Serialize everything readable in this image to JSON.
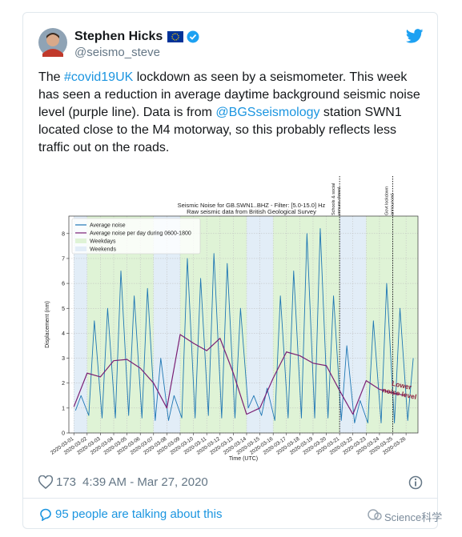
{
  "tweet": {
    "name": "Stephen Hicks",
    "handle": "@seismo_steve",
    "text_parts": [
      "The ",
      "#covid19UK",
      " lockdown as seen by a seismometer. This week has seen a reduction in average daytime background seismic noise level (purple line). Data is from ",
      "@BGSseismology",
      " station SWN1 located close to the M4 motorway, so this probably reflects less traffic out on the roads."
    ],
    "likes": "173",
    "timestamp": "4:39 AM - Mar 27, 2020",
    "conversation": "95 people are talking about this",
    "watermark": "Science科学"
  },
  "chart_data": {
    "type": "line",
    "title": "Seismic Noise for GB.SWN1..BHZ - Filter: [5.0-15.0] Hz",
    "subtitle": "Raw seismic data from British Geological Survey",
    "y_label": "Displacement (nm)",
    "x_label": "Time (UTC)",
    "xlim": [
      "2020-02-29T15:00",
      "2020-03-26T21:30"
    ],
    "ylim": [
      0,
      8.7
    ],
    "yticks": [
      0,
      1,
      2,
      3,
      4,
      5,
      6,
      7,
      8
    ],
    "xticks": [
      "2020-03-01",
      "2020-03-02",
      "2020-03-03",
      "2020-03-04",
      "2020-03-05",
      "2020-03-06",
      "2020-03-07",
      "2020-03-08",
      "2020-03-09",
      "2020-03-10",
      "2020-03-11",
      "2020-03-12",
      "2020-03-13",
      "2020-03-14",
      "2020-03-15",
      "2020-03-16",
      "2020-03-17",
      "2020-03-18",
      "2020-03-19",
      "2020-03-20",
      "2020-03-21",
      "2020-03-22",
      "2020-03-23",
      "2020-03-24",
      "2020-03-25",
      "2020-03-26"
    ],
    "grid": true,
    "legend": "upper left",
    "shading": [
      {
        "name": "Weekdays",
        "color": "#dff3d6"
      },
      {
        "name": "Weekends",
        "color": "#e2edf7"
      }
    ],
    "series": [
      {
        "name": "Average noise",
        "color": "#1f77b4",
        "x": [
          "2020-03-01T03:00",
          "2020-03-01T13:00",
          "2020-03-02T03:00",
          "2020-03-02T13:00",
          "2020-03-03T03:00",
          "2020-03-03T13:00",
          "2020-03-04T03:00",
          "2020-03-04T13:00",
          "2020-03-05T03:00",
          "2020-03-05T13:00",
          "2020-03-06T03:00",
          "2020-03-06T13:00",
          "2020-03-07T03:00",
          "2020-03-07T13:00",
          "2020-03-08T03:00",
          "2020-03-08T13:00",
          "2020-03-09T03:00",
          "2020-03-09T13:00",
          "2020-03-10T03:00",
          "2020-03-10T13:00",
          "2020-03-11T03:00",
          "2020-03-11T13:00",
          "2020-03-12T03:00",
          "2020-03-12T13:00",
          "2020-03-13T03:00",
          "2020-03-13T13:00",
          "2020-03-14T03:00",
          "2020-03-14T13:00",
          "2020-03-15T03:00",
          "2020-03-15T13:00",
          "2020-03-16T03:00",
          "2020-03-16T13:00",
          "2020-03-17T03:00",
          "2020-03-17T13:00",
          "2020-03-18T03:00",
          "2020-03-18T13:00",
          "2020-03-19T03:00",
          "2020-03-19T13:00",
          "2020-03-20T03:00",
          "2020-03-20T13:00",
          "2020-03-21T03:00",
          "2020-03-21T13:00",
          "2020-03-22T03:00",
          "2020-03-22T13:00",
          "2020-03-23T03:00",
          "2020-03-23T13:00",
          "2020-03-24T03:00",
          "2020-03-24T13:00",
          "2020-03-25T03:00",
          "2020-03-25T13:00",
          "2020-03-26T03:00",
          "2020-03-26T13:00"
        ],
        "values": [
          0.9,
          1.5,
          0.7,
          4.5,
          0.6,
          5.0,
          0.6,
          6.5,
          0.7,
          5.5,
          0.6,
          5.8,
          0.5,
          3.0,
          0.5,
          1.5,
          0.6,
          7.0,
          0.6,
          6.2,
          0.7,
          7.2,
          0.6,
          6.8,
          0.6,
          5.0,
          1.0,
          1.5,
          0.7,
          1.8,
          0.5,
          5.5,
          0.6,
          6.5,
          0.6,
          8.0,
          0.6,
          8.2,
          0.6,
          5.5,
          0.5,
          3.5,
          0.4,
          1.3,
          0.4,
          4.5,
          0.4,
          6.0,
          0.4,
          5.0,
          0.5,
          3.0
        ]
      },
      {
        "name": "Average noise per day during 0600-1800",
        "color": "#7a1f74",
        "x": [
          "2020-03-01",
          "2020-03-02",
          "2020-03-03",
          "2020-03-04",
          "2020-03-05",
          "2020-03-06",
          "2020-03-07",
          "2020-03-08",
          "2020-03-09",
          "2020-03-10",
          "2020-03-11",
          "2020-03-12",
          "2020-03-13",
          "2020-03-14",
          "2020-03-15",
          "2020-03-16",
          "2020-03-17",
          "2020-03-18",
          "2020-03-19",
          "2020-03-20",
          "2020-03-21",
          "2020-03-22",
          "2020-03-23",
          "2020-03-24",
          "2020-03-25",
          "2020-03-26"
        ],
        "values": [
          1.05,
          2.4,
          2.25,
          2.9,
          2.95,
          2.6,
          2.0,
          1.0,
          3.95,
          3.6,
          3.3,
          3.8,
          2.4,
          0.75,
          1.0,
          2.2,
          3.25,
          3.1,
          2.8,
          2.7,
          1.7,
          0.75,
          2.1,
          1.75,
          1.6,
          1.5
        ]
      }
    ],
    "annotations": [
      {
        "x": "2020-03-21",
        "lines": [
          "Schools & social",
          "venues closed"
        ]
      },
      {
        "x": "2020-03-25",
        "lines": [
          "Govt lockdown",
          "announced"
        ]
      }
    ],
    "note": {
      "lines": [
        "Lower",
        "noise level"
      ],
      "color": "#8b1c3c"
    }
  }
}
